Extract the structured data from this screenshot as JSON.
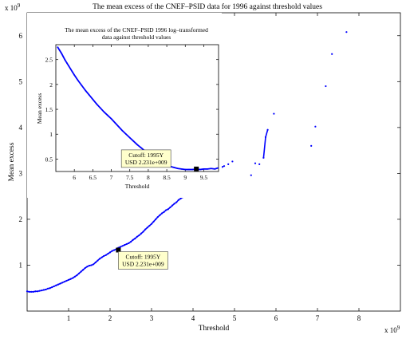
{
  "chart_data": [
    {
      "type": "scatter",
      "title": "The mean excess of the CNEF–PSID data for 1996 against threshold values",
      "xlabel": "Threshold",
      "ylabel": "Mean excess",
      "x_multiplier": "x 10",
      "x_exponent": "9",
      "y_multiplier": "x 10",
      "y_exponent": "9",
      "xlim": [
        0,
        9
      ],
      "ylim": [
        0,
        6.5
      ],
      "xticks": [
        1,
        2,
        3,
        4,
        5,
        6,
        7,
        8
      ],
      "yticks": [
        1,
        2,
        3,
        4,
        5,
        6
      ],
      "xtick_labels": [
        "1",
        "2",
        "3",
        "4",
        "5",
        "6",
        "7",
        "8"
      ],
      "ytick_labels": [
        "1",
        "2",
        "3",
        "4",
        "5",
        "6"
      ],
      "grid": false,
      "color": "#0000ff",
      "series": [
        {
          "points": [
            [
              0.0,
              0.43
            ],
            [
              0.05,
              0.42
            ],
            [
              0.1,
              0.42
            ],
            [
              0.15,
              0.42
            ],
            [
              0.2,
              0.43
            ],
            [
              0.25,
              0.43
            ],
            [
              0.3,
              0.44
            ],
            [
              0.35,
              0.45
            ],
            [
              0.4,
              0.46
            ],
            [
              0.45,
              0.47
            ],
            [
              0.5,
              0.49
            ],
            [
              0.55,
              0.5
            ],
            [
              0.6,
              0.52
            ],
            [
              0.65,
              0.54
            ],
            [
              0.7,
              0.56
            ],
            [
              0.75,
              0.58
            ],
            [
              0.8,
              0.6
            ],
            [
              0.85,
              0.62
            ],
            [
              0.9,
              0.64
            ],
            [
              0.95,
              0.66
            ],
            [
              1.0,
              0.68
            ],
            [
              1.05,
              0.7
            ],
            [
              1.1,
              0.72
            ],
            [
              1.15,
              0.75
            ],
            [
              1.2,
              0.78
            ],
            [
              1.25,
              0.82
            ],
            [
              1.3,
              0.86
            ],
            [
              1.35,
              0.9
            ],
            [
              1.4,
              0.94
            ],
            [
              1.45,
              0.97
            ],
            [
              1.5,
              0.99
            ],
            [
              1.55,
              1.0
            ],
            [
              1.6,
              1.02
            ],
            [
              1.65,
              1.06
            ],
            [
              1.7,
              1.1
            ],
            [
              1.75,
              1.14
            ],
            [
              1.8,
              1.17
            ],
            [
              1.85,
              1.2
            ],
            [
              1.9,
              1.22
            ],
            [
              1.95,
              1.25
            ],
            [
              2.0,
              1.28
            ],
            [
              2.05,
              1.31
            ],
            [
              2.1,
              1.33
            ],
            [
              2.15,
              1.35
            ],
            [
              2.2,
              1.38
            ],
            [
              2.25,
              1.4
            ],
            [
              2.3,
              1.42
            ],
            [
              2.35,
              1.44
            ],
            [
              2.4,
              1.46
            ],
            [
              2.45,
              1.48
            ],
            [
              2.5,
              1.51
            ],
            [
              2.55,
              1.55
            ],
            [
              2.6,
              1.58
            ],
            [
              2.65,
              1.62
            ],
            [
              2.7,
              1.65
            ],
            [
              2.75,
              1.69
            ],
            [
              2.8,
              1.73
            ],
            [
              2.85,
              1.78
            ],
            [
              2.9,
              1.82
            ],
            [
              2.95,
              1.86
            ],
            [
              3.0,
              1.9
            ],
            [
              3.05,
              1.95
            ],
            [
              3.1,
              2.0
            ],
            [
              3.15,
              2.05
            ],
            [
              3.2,
              2.09
            ],
            [
              3.25,
              2.13
            ],
            [
              3.3,
              2.16
            ],
            [
              3.35,
              2.2
            ],
            [
              3.4,
              2.22
            ],
            [
              3.45,
              2.26
            ],
            [
              3.5,
              2.3
            ],
            [
              3.55,
              2.34
            ],
            [
              3.6,
              2.37
            ],
            [
              3.65,
              2.42
            ],
            [
              3.7,
              2.45
            ],
            [
              3.75,
              2.48
            ],
            [
              3.8,
              2.52
            ],
            [
              3.85,
              2.55
            ],
            [
              3.9,
              2.6
            ],
            [
              3.95,
              2.64
            ],
            [
              4.0,
              2.68
            ],
            [
              4.05,
              2.72
            ],
            [
              4.1,
              2.76
            ],
            [
              4.15,
              2.8
            ],
            [
              4.2,
              2.83
            ],
            [
              4.25,
              2.86
            ],
            [
              4.3,
              2.88
            ],
            [
              4.35,
              2.91
            ],
            [
              4.4,
              2.95
            ],
            [
              4.45,
              2.99
            ],
            [
              4.5,
              3.02
            ],
            [
              4.55,
              3.05
            ],
            [
              4.6,
              3.08
            ],
            [
              4.65,
              3.11
            ],
            [
              4.7,
              3.14
            ],
            [
              4.75,
              3.16
            ],
            [
              4.85,
              3.2
            ],
            [
              4.95,
              3.26
            ],
            [
              5.4,
              2.96
            ],
            [
              5.5,
              3.22
            ],
            [
              5.6,
              3.2
            ],
            [
              5.7,
              3.34
            ],
            [
              5.75,
              3.79
            ],
            [
              5.8,
              3.95
            ],
            [
              5.95,
              4.3
            ],
            [
              6.85,
              3.6
            ],
            [
              6.95,
              4.02
            ],
            [
              7.2,
              4.9
            ],
            [
              7.35,
              5.6
            ],
            [
              7.7,
              6.08
            ]
          ]
        }
      ],
      "annotations": [
        {
          "x": 2.2,
          "y": 1.33,
          "line1": "Cutoff: 1995Y",
          "line2": "USD 2.231e+009"
        }
      ]
    },
    {
      "type": "scatter",
      "title": "The mean excess of the CNEF–PSID 1996 log–transformed data against threshold values",
      "title_line1": "The mean excess of the CNEF–PSID 1996 log–transformed",
      "title_line2": "data against threshold values",
      "xlabel": "Threshold",
      "ylabel": "Mean excess",
      "xlim": [
        5.5,
        9.9
      ],
      "ylim": [
        0.25,
        2.8
      ],
      "xticks": [
        6,
        6.5,
        7,
        7.5,
        8,
        8.5,
        9,
        9.5
      ],
      "yticks": [
        0.5,
        1,
        1.5,
        2,
        2.5
      ],
      "xtick_labels": [
        "6",
        "6.5",
        "7",
        "7.5",
        "8",
        "8.5",
        "9",
        "9.5"
      ],
      "ytick_labels": [
        "0.5",
        "1",
        "1.5",
        "2",
        "2.5"
      ],
      "grid": false,
      "color": "#0000ff",
      "series": [
        {
          "points": [
            [
              5.55,
              2.75
            ],
            [
              5.6,
              2.69
            ],
            [
              5.65,
              2.63
            ],
            [
              5.7,
              2.56
            ],
            [
              5.75,
              2.49
            ],
            [
              5.8,
              2.43
            ],
            [
              5.85,
              2.37
            ],
            [
              5.9,
              2.31
            ],
            [
              5.95,
              2.25
            ],
            [
              6.0,
              2.19
            ],
            [
              6.1,
              2.08
            ],
            [
              6.2,
              1.98
            ],
            [
              6.3,
              1.88
            ],
            [
              6.4,
              1.79
            ],
            [
              6.5,
              1.7
            ],
            [
              6.6,
              1.61
            ],
            [
              6.7,
              1.53
            ],
            [
              6.8,
              1.45
            ],
            [
              6.9,
              1.38
            ],
            [
              7.0,
              1.31
            ],
            [
              7.1,
              1.23
            ],
            [
              7.2,
              1.15
            ],
            [
              7.3,
              1.07
            ],
            [
              7.4,
              1.0
            ],
            [
              7.5,
              0.93
            ],
            [
              7.6,
              0.86
            ],
            [
              7.7,
              0.79
            ],
            [
              7.8,
              0.73
            ],
            [
              7.9,
              0.67
            ],
            [
              8.0,
              0.61
            ],
            [
              8.1,
              0.55
            ],
            [
              8.2,
              0.5
            ],
            [
              8.3,
              0.46
            ],
            [
              8.4,
              0.42
            ],
            [
              8.5,
              0.38
            ],
            [
              8.6,
              0.35
            ],
            [
              8.7,
              0.33
            ],
            [
              8.8,
              0.31
            ],
            [
              8.9,
              0.3
            ],
            [
              9.0,
              0.29
            ],
            [
              9.1,
              0.29
            ],
            [
              9.2,
              0.29
            ],
            [
              9.3,
              0.3
            ],
            [
              9.4,
              0.29
            ],
            [
              9.5,
              0.3
            ],
            [
              9.6,
              0.3
            ],
            [
              9.7,
              0.31
            ],
            [
              9.8,
              0.3
            ],
            [
              9.88,
              0.32
            ]
          ]
        }
      ],
      "annotations": [
        {
          "x": 9.3,
          "y": 0.3,
          "line1": "Cutoff: 1995Y",
          "line2": "USD 2.231e+009"
        }
      ]
    }
  ]
}
